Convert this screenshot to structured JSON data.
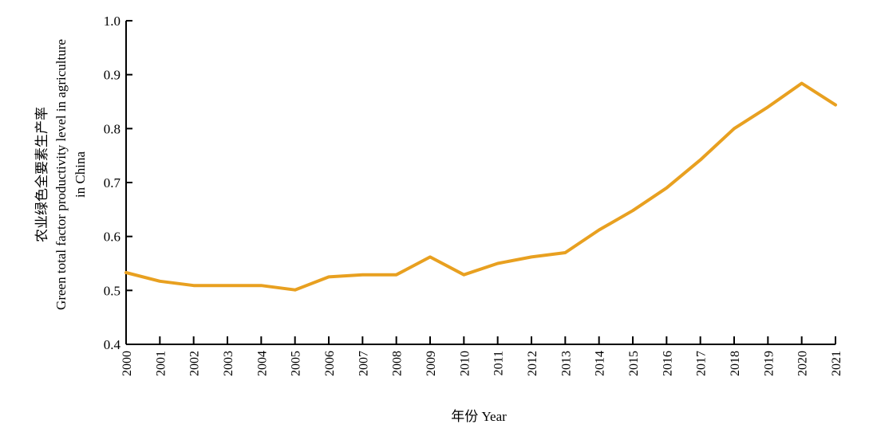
{
  "chart_data": {
    "type": "line",
    "title": "",
    "xlabel": "年份 Year",
    "ylabel_lines": [
      "农业绿色全要素生产率",
      "Green total factor productivity level in agriculture",
      "in China"
    ],
    "ylim": [
      0.4,
      1.0
    ],
    "y_ticks": [
      "0.4",
      "0.5",
      "0.6",
      "0.7",
      "0.8",
      "0.9",
      "1.0"
    ],
    "x": [
      "2000",
      "2001",
      "2002",
      "2003",
      "2004",
      "2005",
      "2006",
      "2007",
      "2008",
      "2009",
      "2010",
      "2011",
      "2012",
      "2013",
      "2014",
      "2015",
      "2016",
      "2017",
      "2018",
      "2019",
      "2020",
      "2021"
    ],
    "series": [
      {
        "color": "#E8A020",
        "values": [
          0.533,
          0.517,
          0.509,
          0.509,
          0.509,
          0.501,
          0.525,
          0.529,
          0.529,
          0.562,
          0.529,
          0.55,
          0.562,
          0.57,
          0.612,
          0.648,
          0.69,
          0.742,
          0.8,
          0.84,
          0.884,
          0.844
        ]
      }
    ],
    "grid": false,
    "legend": "none"
  }
}
